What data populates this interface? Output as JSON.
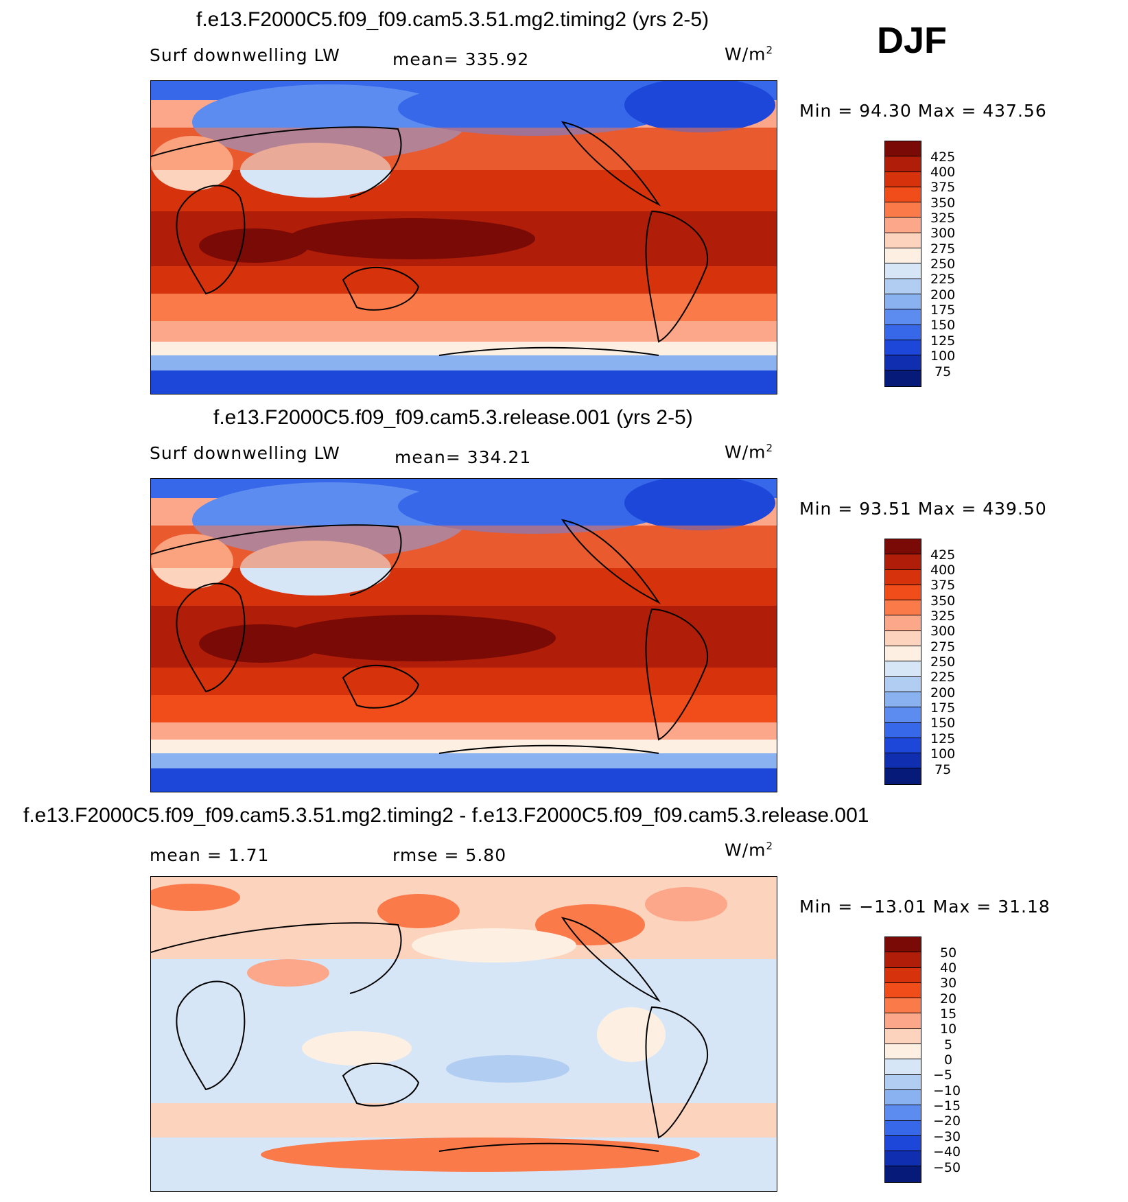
{
  "season": "DJF",
  "panels": [
    {
      "title": "f.e13.F2000C5.f09_f09.cam5.3.51.mg2.timing2 (yrs 2-5)",
      "variable": "Surf downwelling LW",
      "stat_text": "mean=  335.92",
      "units": "W/m",
      "units_exp": "2",
      "minmax": "Min =   94.30  Max  =  437.56",
      "levels": [
        "425",
        "400",
        "375",
        "350",
        "325",
        "300",
        "275",
        "250",
        "225",
        "200",
        "175",
        "150",
        "125",
        "100",
        "75"
      ],
      "colors": [
        "#7a0a05",
        "#b01d08",
        "#d6330c",
        "#f04d1a",
        "#fa7a4a",
        "#fca789",
        "#fcd3bd",
        "#fdf0e3",
        "#d6e6f7",
        "#b2cdf2",
        "#8ab2f0",
        "#5d8cf0",
        "#3768ea",
        "#1c47d8",
        "#0f2fb0",
        "#061a7a"
      ]
    },
    {
      "title": "f.e13.F2000C5.f09_f09.cam5.3.release.001 (yrs 2-5)",
      "variable": "Surf downwelling LW",
      "stat_text": "mean=  334.21",
      "units": "W/m",
      "units_exp": "2",
      "minmax": "Min =   93.51  Max  =  439.50",
      "levels": [
        "425",
        "400",
        "375",
        "350",
        "325",
        "300",
        "275",
        "250",
        "225",
        "200",
        "175",
        "150",
        "125",
        "100",
        "75"
      ],
      "colors": [
        "#7a0a05",
        "#b01d08",
        "#d6330c",
        "#f04d1a",
        "#fa7a4a",
        "#fca789",
        "#fcd3bd",
        "#fdf0e3",
        "#d6e6f7",
        "#b2cdf2",
        "#8ab2f0",
        "#5d8cf0",
        "#3768ea",
        "#1c47d8",
        "#0f2fb0",
        "#061a7a"
      ]
    },
    {
      "title": "f.e13.F2000C5.f09_f09.cam5.3.51.mg2.timing2 - f.e13.F2000C5.f09_f09.cam5.3.release.001",
      "variable": "",
      "stat_text": "mean =     1.71",
      "stat_text2": "rmse =     5.80",
      "units": "W/m",
      "units_exp": "2",
      "minmax": "Min  =  −13.01  Max  =    31.18",
      "levels": [
        "50",
        "40",
        "30",
        "20",
        "15",
        "10",
        "5",
        "0",
        "−5",
        "−10",
        "−15",
        "−20",
        "−30",
        "−40",
        "−50"
      ],
      "colors": [
        "#7a0a05",
        "#b01d08",
        "#d6330c",
        "#f04d1a",
        "#fa7a4a",
        "#fca789",
        "#fcd3bd",
        "#fdf0e3",
        "#d6e6f7",
        "#b2cdf2",
        "#8ab2f0",
        "#5d8cf0",
        "#3768ea",
        "#1c47d8",
        "#0f2fb0",
        "#061a7a"
      ]
    }
  ]
}
